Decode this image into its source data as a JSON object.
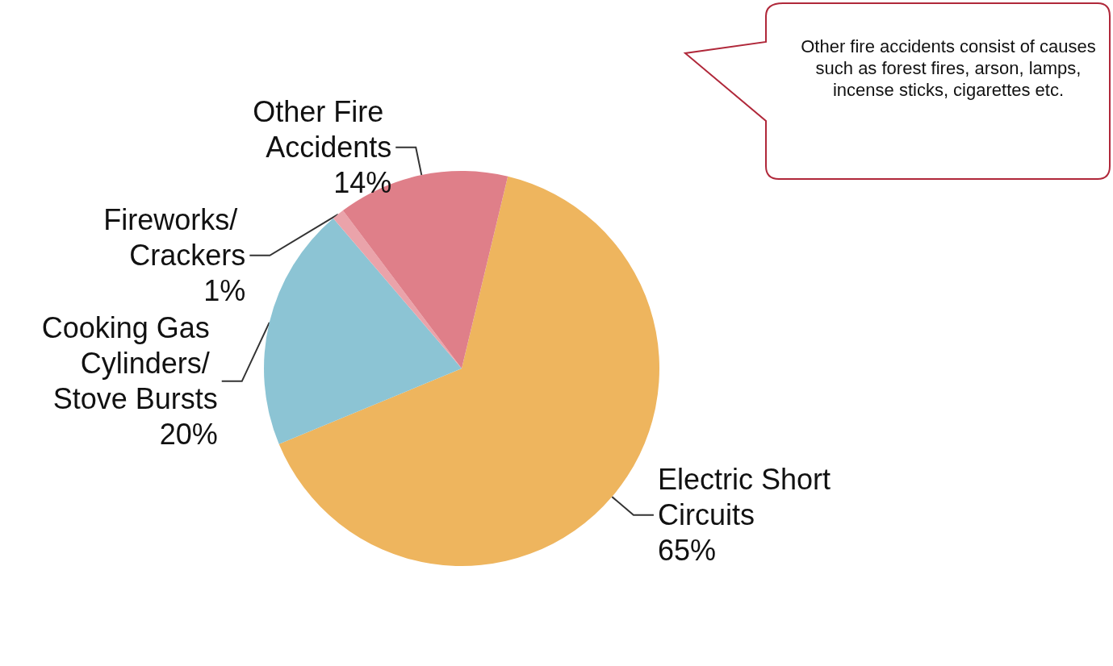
{
  "chart_data": {
    "type": "pie",
    "categories": [
      "Electric Short Circuits",
      "Cooking Gas Cylinders/ Stove Bursts",
      "Fireworks/ Crackers",
      "Other Fire Accidents"
    ],
    "values": [
      65,
      20,
      1,
      14
    ],
    "value_labels": [
      "65%",
      "20%",
      "1%",
      "14%"
    ],
    "colors": [
      "#eeb55e",
      "#8cc4d4",
      "#eaa3aa",
      "#df7f89"
    ],
    "annotations": [
      "Other fire accidents consist of causes such as forest fires, arson, lamps, incense sticks, cigarettes etc."
    ]
  }
}
